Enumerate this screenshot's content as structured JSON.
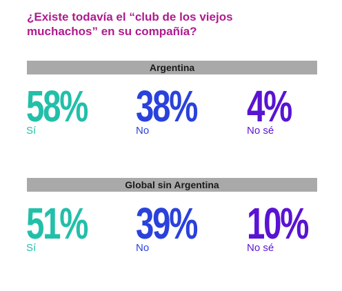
{
  "title_lines": [
    "¿Existe todavía el “club de los viejos",
    "muchachos” en su compañía?"
  ],
  "colors": {
    "title": "#b0198e",
    "band": "#a9a9a9",
    "si": "#22bfa9",
    "no": "#2a41dc",
    "no_se": "#5a13d2"
  },
  "chart_data": {
    "type": "table",
    "title": "¿Existe todavía el “club de los viejos muchachos” en su compañía?",
    "categories": [
      "Sí",
      "No",
      "No sé"
    ],
    "unit": "%",
    "groups": [
      {
        "name": "Argentina",
        "values": [
          58,
          38,
          4
        ],
        "labels": [
          "58%",
          "38%",
          "4%"
        ]
      },
      {
        "name": "Global sin Argentina",
        "values": [
          51,
          39,
          10
        ],
        "labels": [
          "51%",
          "39%",
          "10%"
        ]
      }
    ]
  }
}
